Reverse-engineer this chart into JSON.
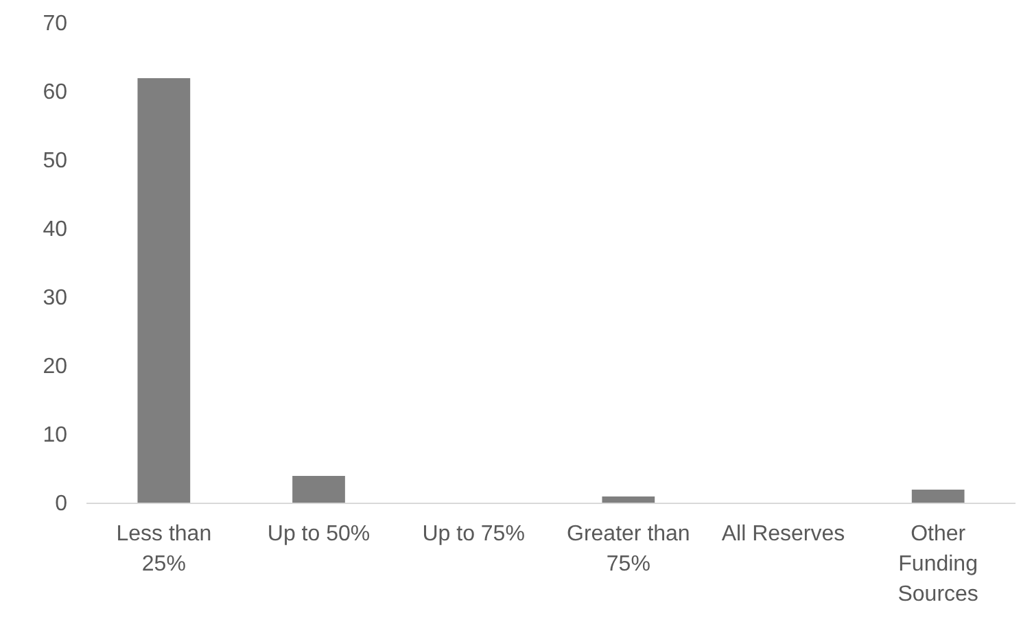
{
  "chart_data": {
    "type": "bar",
    "categories": [
      "Less than 25%",
      "Up to 50%",
      "Up to 75%",
      "Greater than 75%",
      "All Reserves",
      "Other Funding Sources"
    ],
    "values": [
      62,
      4,
      0,
      1,
      0,
      2
    ],
    "color": "#7f7f7f",
    "ylim": [
      0,
      70
    ],
    "yticks": [
      0,
      10,
      20,
      30,
      40,
      50,
      60,
      70
    ],
    "grid": false
  }
}
